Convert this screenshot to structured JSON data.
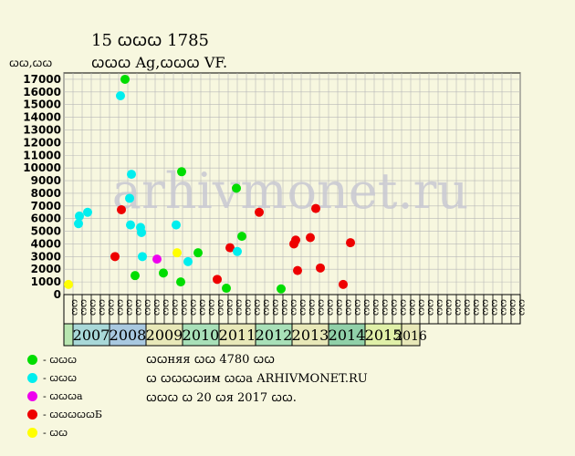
{
  "header": {
    "title": "15 ꞷꞷꞷ 1785",
    "subtitle": "ꞷꞷꞷ Ag,ꞷꞷꞷ VF.",
    "y_unit": "ꞷꞷ,ꞷꞷ"
  },
  "watermark": "arhivmonet.ru",
  "chart_data": {
    "type": "scatter",
    "ylim": [
      0,
      17500
    ],
    "y_ticks": [
      0,
      1000,
      2000,
      3000,
      4000,
      5000,
      6000,
      7000,
      8000,
      9000,
      10000,
      11000,
      12000,
      13000,
      14000,
      15000,
      16000,
      17000
    ],
    "grid": true,
    "half_year_labels": [
      "ꞷꞷ",
      "ꞷꞷ",
      "ꞷꞷ",
      "ꞷꞷ",
      "ꞷꞷ",
      "ꞷꞷ",
      "ꞷꞷ",
      "ꞷꞷ",
      "ꞷꞷ",
      "ꞷꞷ",
      "ꞷꞷ",
      "ꞷꞷ",
      "ꞷꞷ",
      "ꞷꞷ",
      "ꞷꞷ",
      "ꞷꞷ",
      "ꞷꞷ",
      "ꞷꞷ",
      "ꞷꞷ",
      "ꞷꞷ",
      "ꞷꞷ",
      "ꞷꞷ",
      "ꞷꞷ",
      "ꞷꞷ",
      "ꞷꞷ",
      "ꞷꞷ",
      "ꞷꞷ",
      "ꞷꞷ",
      "ꞷꞷ",
      "ꞷꞷ",
      "ꞷꞷ",
      "ꞷꞷ",
      "ꞷꞷ",
      "ꞷꞷ",
      "ꞷꞷ",
      "ꞷꞷ",
      "ꞷꞷ",
      "ꞷꞷ",
      "ꞷꞷ",
      "ꞷꞷ",
      "ꞷꞷ",
      "ꞷꞷ",
      "ꞷꞷ",
      "ꞷꞷ",
      "ꞷꞷ",
      "ꞷꞷ",
      "ꞷꞷ",
      "ꞷꞷ",
      "ꞷꞷ",
      "ꞷꞷ"
    ],
    "years": [
      {
        "label": "",
        "span": 1,
        "color": "#b8e6b0"
      },
      {
        "label": "2007",
        "span": 4,
        "color": "#a8d8d8"
      },
      {
        "label": "2008",
        "span": 4,
        "color": "#a8c8e0"
      },
      {
        "label": "2009",
        "span": 4,
        "color": "#e8e8b8"
      },
      {
        "label": "2010",
        "span": 4,
        "color": "#a8e0b8"
      },
      {
        "label": "2011",
        "span": 4,
        "color": "#e8e8b8"
      },
      {
        "label": "2012",
        "span": 4,
        "color": "#a8e0b8"
      },
      {
        "label": "2013",
        "span": 4,
        "color": "#e8e8b8"
      },
      {
        "label": "2014",
        "span": 4,
        "color": "#90d0a8"
      },
      {
        "label": "2015",
        "span": 4,
        "color": "#e0f0a8"
      },
      {
        "label": "2016",
        "span": 2,
        "color": "#e8e8b8"
      }
    ],
    "categories": [
      {
        "name": "ꞷꞷꞷ",
        "color": "#00dd00"
      },
      {
        "name": "ꞷꞷꞷ",
        "color": "#00eeee"
      },
      {
        "name": "ꞷꞷꞷa",
        "color": "#ee00ee"
      },
      {
        "name": "ꞷꞷꞷꞷꞷБ",
        "color": "#ee0000"
      },
      {
        "name": "ꞷꞷ",
        "color": "#ffff00"
      }
    ],
    "points": [
      {
        "x": 0.5,
        "y": 800,
        "c": 4
      },
      {
        "x": 1.6,
        "y": 5600,
        "c": 1
      },
      {
        "x": 1.7,
        "y": 6200,
        "c": 1
      },
      {
        "x": 2.6,
        "y": 6500,
        "c": 1
      },
      {
        "x": 5.6,
        "y": 3000,
        "c": 3
      },
      {
        "x": 6.2,
        "y": 15700,
        "c": 1
      },
      {
        "x": 6.3,
        "y": 6700,
        "c": 3
      },
      {
        "x": 6.7,
        "y": 17000,
        "c": 0
      },
      {
        "x": 7.2,
        "y": 7600,
        "c": 1
      },
      {
        "x": 7.3,
        "y": 5500,
        "c": 1
      },
      {
        "x": 7.4,
        "y": 9500,
        "c": 1
      },
      {
        "x": 7.8,
        "y": 1500,
        "c": 0
      },
      {
        "x": 8.4,
        "y": 5300,
        "c": 1
      },
      {
        "x": 8.5,
        "y": 4900,
        "c": 1
      },
      {
        "x": 8.6,
        "y": 3000,
        "c": 1
      },
      {
        "x": 10.2,
        "y": 2800,
        "c": 2
      },
      {
        "x": 10.9,
        "y": 1700,
        "c": 0
      },
      {
        "x": 12.3,
        "y": 5500,
        "c": 1
      },
      {
        "x": 12.4,
        "y": 3300,
        "c": 4
      },
      {
        "x": 12.8,
        "y": 1000,
        "c": 0
      },
      {
        "x": 12.9,
        "y": 9700,
        "c": 0
      },
      {
        "x": 13.6,
        "y": 2600,
        "c": 1
      },
      {
        "x": 14.7,
        "y": 3300,
        "c": 0
      },
      {
        "x": 16.8,
        "y": 1200,
        "c": 3
      },
      {
        "x": 17.8,
        "y": 500,
        "c": 0
      },
      {
        "x": 18.2,
        "y": 3700,
        "c": 3
      },
      {
        "x": 18.9,
        "y": 8400,
        "c": 0
      },
      {
        "x": 19.0,
        "y": 3400,
        "c": 1
      },
      {
        "x": 19.5,
        "y": 4600,
        "c": 0
      },
      {
        "x": 21.4,
        "y": 6500,
        "c": 3
      },
      {
        "x": 23.8,
        "y": 450,
        "c": 0
      },
      {
        "x": 25.2,
        "y": 4000,
        "c": 3
      },
      {
        "x": 25.4,
        "y": 4300,
        "c": 3
      },
      {
        "x": 25.6,
        "y": 1900,
        "c": 3
      },
      {
        "x": 27.0,
        "y": 4500,
        "c": 3
      },
      {
        "x": 27.6,
        "y": 6800,
        "c": 3
      },
      {
        "x": 28.1,
        "y": 2100,
        "c": 3
      },
      {
        "x": 30.6,
        "y": 800,
        "c": 3
      },
      {
        "x": 31.4,
        "y": 4100,
        "c": 3
      }
    ]
  },
  "notes": {
    "line1": "ꞷꞷняя ꞷꞷ 4780 ꞷꞷ",
    "line2": "ꞷ ꞷꞷꞷꞷим ꞷꞷa ARHIVMONET.RU",
    "line3": "ꞷꞷꞷ ꞷ 20 ꞷя 2017 ꞷꞷ."
  }
}
